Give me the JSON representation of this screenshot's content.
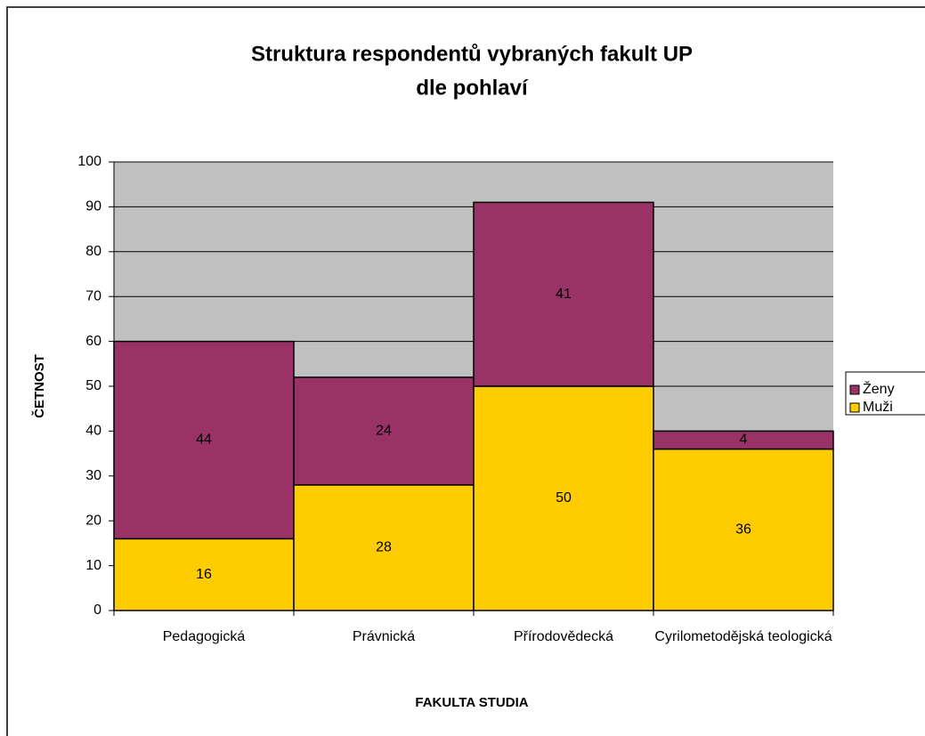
{
  "chart_data": {
    "type": "stacked_bar",
    "title": [
      "Struktura respondentů vybraných fakult UP",
      "dle pohlaví"
    ],
    "x_label": "FAKULTA STUDIA",
    "y_label": "ČETNOST",
    "categories": [
      "Pedagogická",
      "Právnická",
      "Přírodovědecká",
      "Cyrilometodějská teologická"
    ],
    "series": [
      {
        "name": "Muži",
        "color": "#ffcc00",
        "values": [
          16,
          28,
          50,
          36
        ]
      },
      {
        "name": "Ženy",
        "color": "#993366",
        "values": [
          44,
          24,
          41,
          4
        ]
      }
    ],
    "ylim": [
      0,
      100
    ],
    "yticks": [
      0,
      10,
      20,
      30,
      40,
      50,
      60,
      70,
      80,
      90,
      100
    ],
    "grid": true,
    "legend": "right"
  }
}
